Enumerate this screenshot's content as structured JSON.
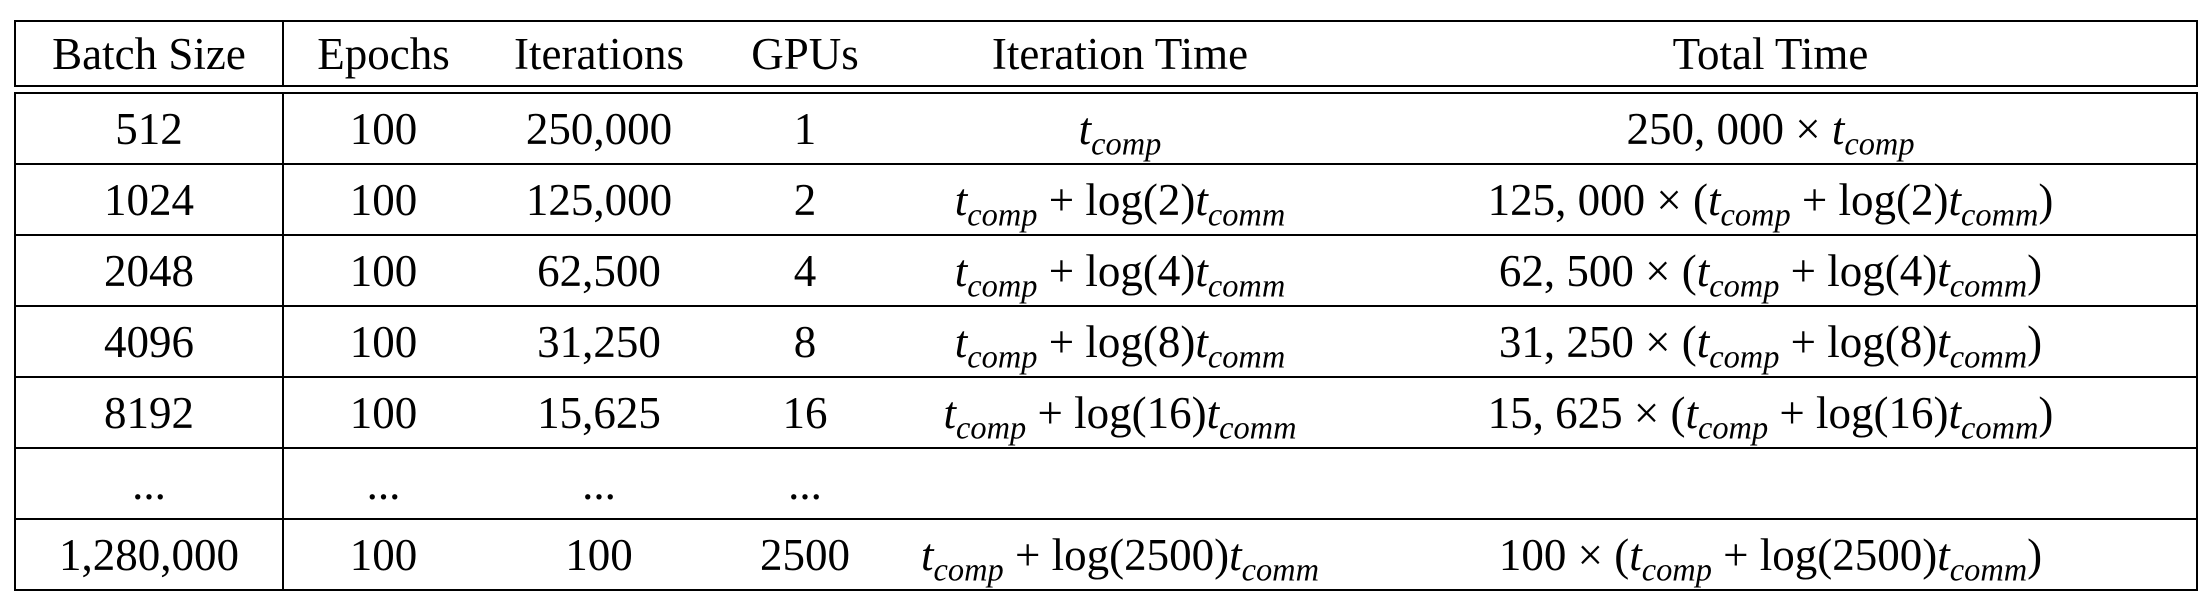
{
  "table": {
    "columns": [
      "Batch Size",
      "Epochs",
      "Iterations",
      "GPUs",
      "Iteration Time",
      "Total Time"
    ],
    "rows": [
      {
        "batch_size": "512",
        "epochs": "100",
        "iterations": "250,000",
        "gpus": "1",
        "iter_time": {
          "t": "t",
          "comp": "comp",
          "log": "",
          "comm": ""
        },
        "total_time": {
          "count": "250, 000",
          "t": "t",
          "comp": "comp",
          "log": "",
          "comm": ""
        }
      },
      {
        "batch_size": "1024",
        "epochs": "100",
        "iterations": "125,000",
        "gpus": "2",
        "iter_time": {
          "t": "t",
          "comp": "comp",
          "log": "log(2)",
          "comm": "comm"
        },
        "total_time": {
          "count": "125, 000",
          "t": "t",
          "comp": "comp",
          "log": "log(2)",
          "comm": "comm"
        }
      },
      {
        "batch_size": "2048",
        "epochs": "100",
        "iterations": "62,500",
        "gpus": "4",
        "iter_time": {
          "t": "t",
          "comp": "comp",
          "log": "log(4)",
          "comm": "comm"
        },
        "total_time": {
          "count": "62, 500",
          "t": "t",
          "comp": "comp",
          "log": "log(4)",
          "comm": "comm"
        }
      },
      {
        "batch_size": "4096",
        "epochs": "100",
        "iterations": "31,250",
        "gpus": "8",
        "iter_time": {
          "t": "t",
          "comp": "comp",
          "log": "log(8)",
          "comm": "comm"
        },
        "total_time": {
          "count": "31, 250",
          "t": "t",
          "comp": "comp",
          "log": "log(8)",
          "comm": "comm"
        }
      },
      {
        "batch_size": "8192",
        "epochs": "100",
        "iterations": "15,625",
        "gpus": "16",
        "iter_time": {
          "t": "t",
          "comp": "comp",
          "log": "log(16)",
          "comm": "comm"
        },
        "total_time": {
          "count": "15, 625",
          "t": "t",
          "comp": "comp",
          "log": "log(16)",
          "comm": "comm"
        }
      },
      {
        "batch_size": "...",
        "epochs": "...",
        "iterations": "...",
        "gpus": "...",
        "iter_time": null,
        "total_time": null
      },
      {
        "batch_size": "1,280,000",
        "epochs": "100",
        "iterations": "100",
        "gpus": "2500",
        "iter_time": {
          "t": "t",
          "comp": "comp",
          "log": "log(2500)",
          "comm": "comm"
        },
        "total_time": {
          "count": "100",
          "t": "t",
          "comp": "comp",
          "log": "log(2500)",
          "comm": "comm"
        }
      }
    ]
  }
}
